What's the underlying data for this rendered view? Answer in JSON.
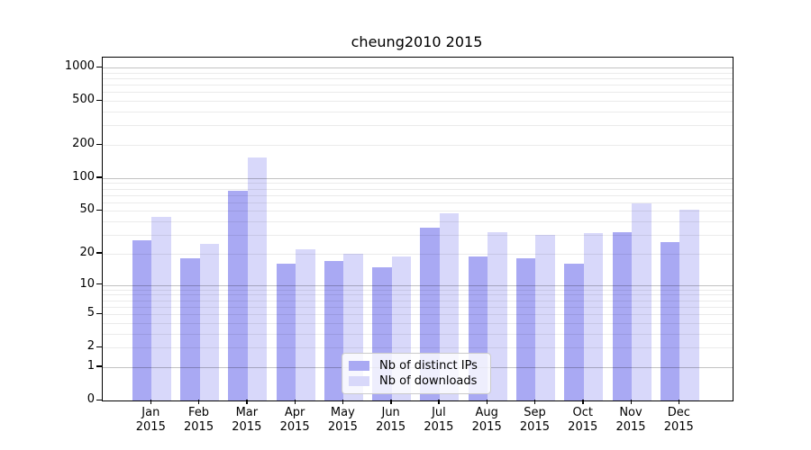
{
  "chart_data": {
    "type": "bar",
    "title": "cheung2010 2015",
    "scale": "log1p",
    "grid": true,
    "legend_position": "lower center",
    "categories": [
      "Jan",
      "Feb",
      "Mar",
      "Apr",
      "May",
      "Jun",
      "Jul",
      "Aug",
      "Sep",
      "Oct",
      "Nov",
      "Dec"
    ],
    "category_year": "2015",
    "series": [
      {
        "name": "Nb of distinct IPs",
        "color": "#a9a9f3",
        "values": [
          27,
          18,
          77,
          16,
          17,
          15,
          35,
          19,
          18,
          16,
          32,
          26
        ]
      },
      {
        "name": "Nb of downloads",
        "color": "#d8d8fa",
        "values": [
          44,
          25,
          155,
          22,
          20,
          19,
          48,
          32,
          30,
          31,
          59,
          51
        ]
      }
    ],
    "yticks": [
      0,
      1,
      2,
      5,
      10,
      20,
      50,
      100,
      200,
      500,
      1000
    ],
    "ylim": [
      0,
      1230
    ],
    "xlabel": "",
    "ylabel": ""
  }
}
